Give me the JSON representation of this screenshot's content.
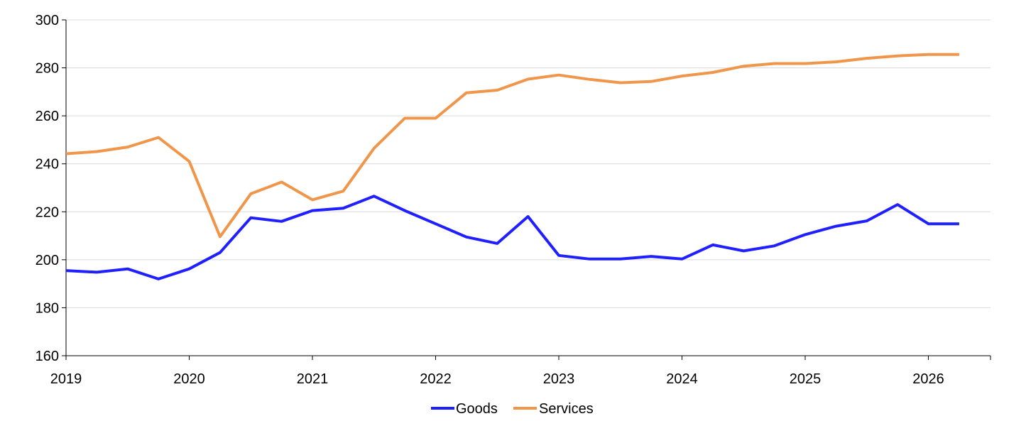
{
  "chart_data": {
    "type": "line",
    "title": "",
    "xlabel": "",
    "ylabel": "",
    "ylim": [
      160,
      300
    ],
    "xlim": [
      2019,
      2026.5
    ],
    "y_ticks": [
      160,
      180,
      200,
      220,
      240,
      260,
      280,
      300
    ],
    "x_ticks": [
      2019,
      2020,
      2021,
      2022,
      2023,
      2024,
      2025,
      2026
    ],
    "x_tick_labels": [
      "2019",
      "2020",
      "2021",
      "2022",
      "2023",
      "2024",
      "2025",
      "2026"
    ],
    "grid": "horizontal",
    "legend_position": "bottom-center",
    "x": [
      2019.0,
      2019.25,
      2019.5,
      2019.75,
      2020.0,
      2020.25,
      2020.5,
      2020.75,
      2021.0,
      2021.25,
      2021.5,
      2021.75,
      2022.0,
      2022.25,
      2022.5,
      2022.75,
      2023.0,
      2023.25,
      2023.5,
      2023.75,
      2024.0,
      2024.25,
      2024.5,
      2024.75,
      2025.0,
      2025.25,
      2025.5,
      2025.75,
      2026.0,
      2026.25
    ],
    "series": [
      {
        "name": "Goods",
        "color": "#1f1fff",
        "values": [
          195.5,
          194.8,
          196.2,
          192.0,
          196.2,
          203.0,
          217.5,
          216.0,
          220.5,
          221.5,
          226.5,
          220.5,
          215.0,
          209.5,
          206.8,
          218.0,
          201.8,
          200.3,
          200.3,
          201.4,
          200.3,
          206.2,
          203.7,
          205.8,
          210.5,
          214.0,
          216.2,
          223.0,
          215.0,
          215.0
        ]
      },
      {
        "name": "Services",
        "color": "#f0964b",
        "values": [
          244.2,
          245.1,
          247.0,
          251.0,
          241.0,
          209.6,
          227.5,
          232.4,
          225.0,
          228.6,
          246.5,
          259.0,
          259.0,
          269.6,
          270.7,
          275.3,
          277.0,
          275.2,
          273.8,
          274.3,
          276.6,
          278.1,
          280.7,
          281.8,
          281.8,
          282.5,
          284.0,
          285.0,
          285.6,
          285.6
        ]
      }
    ]
  }
}
